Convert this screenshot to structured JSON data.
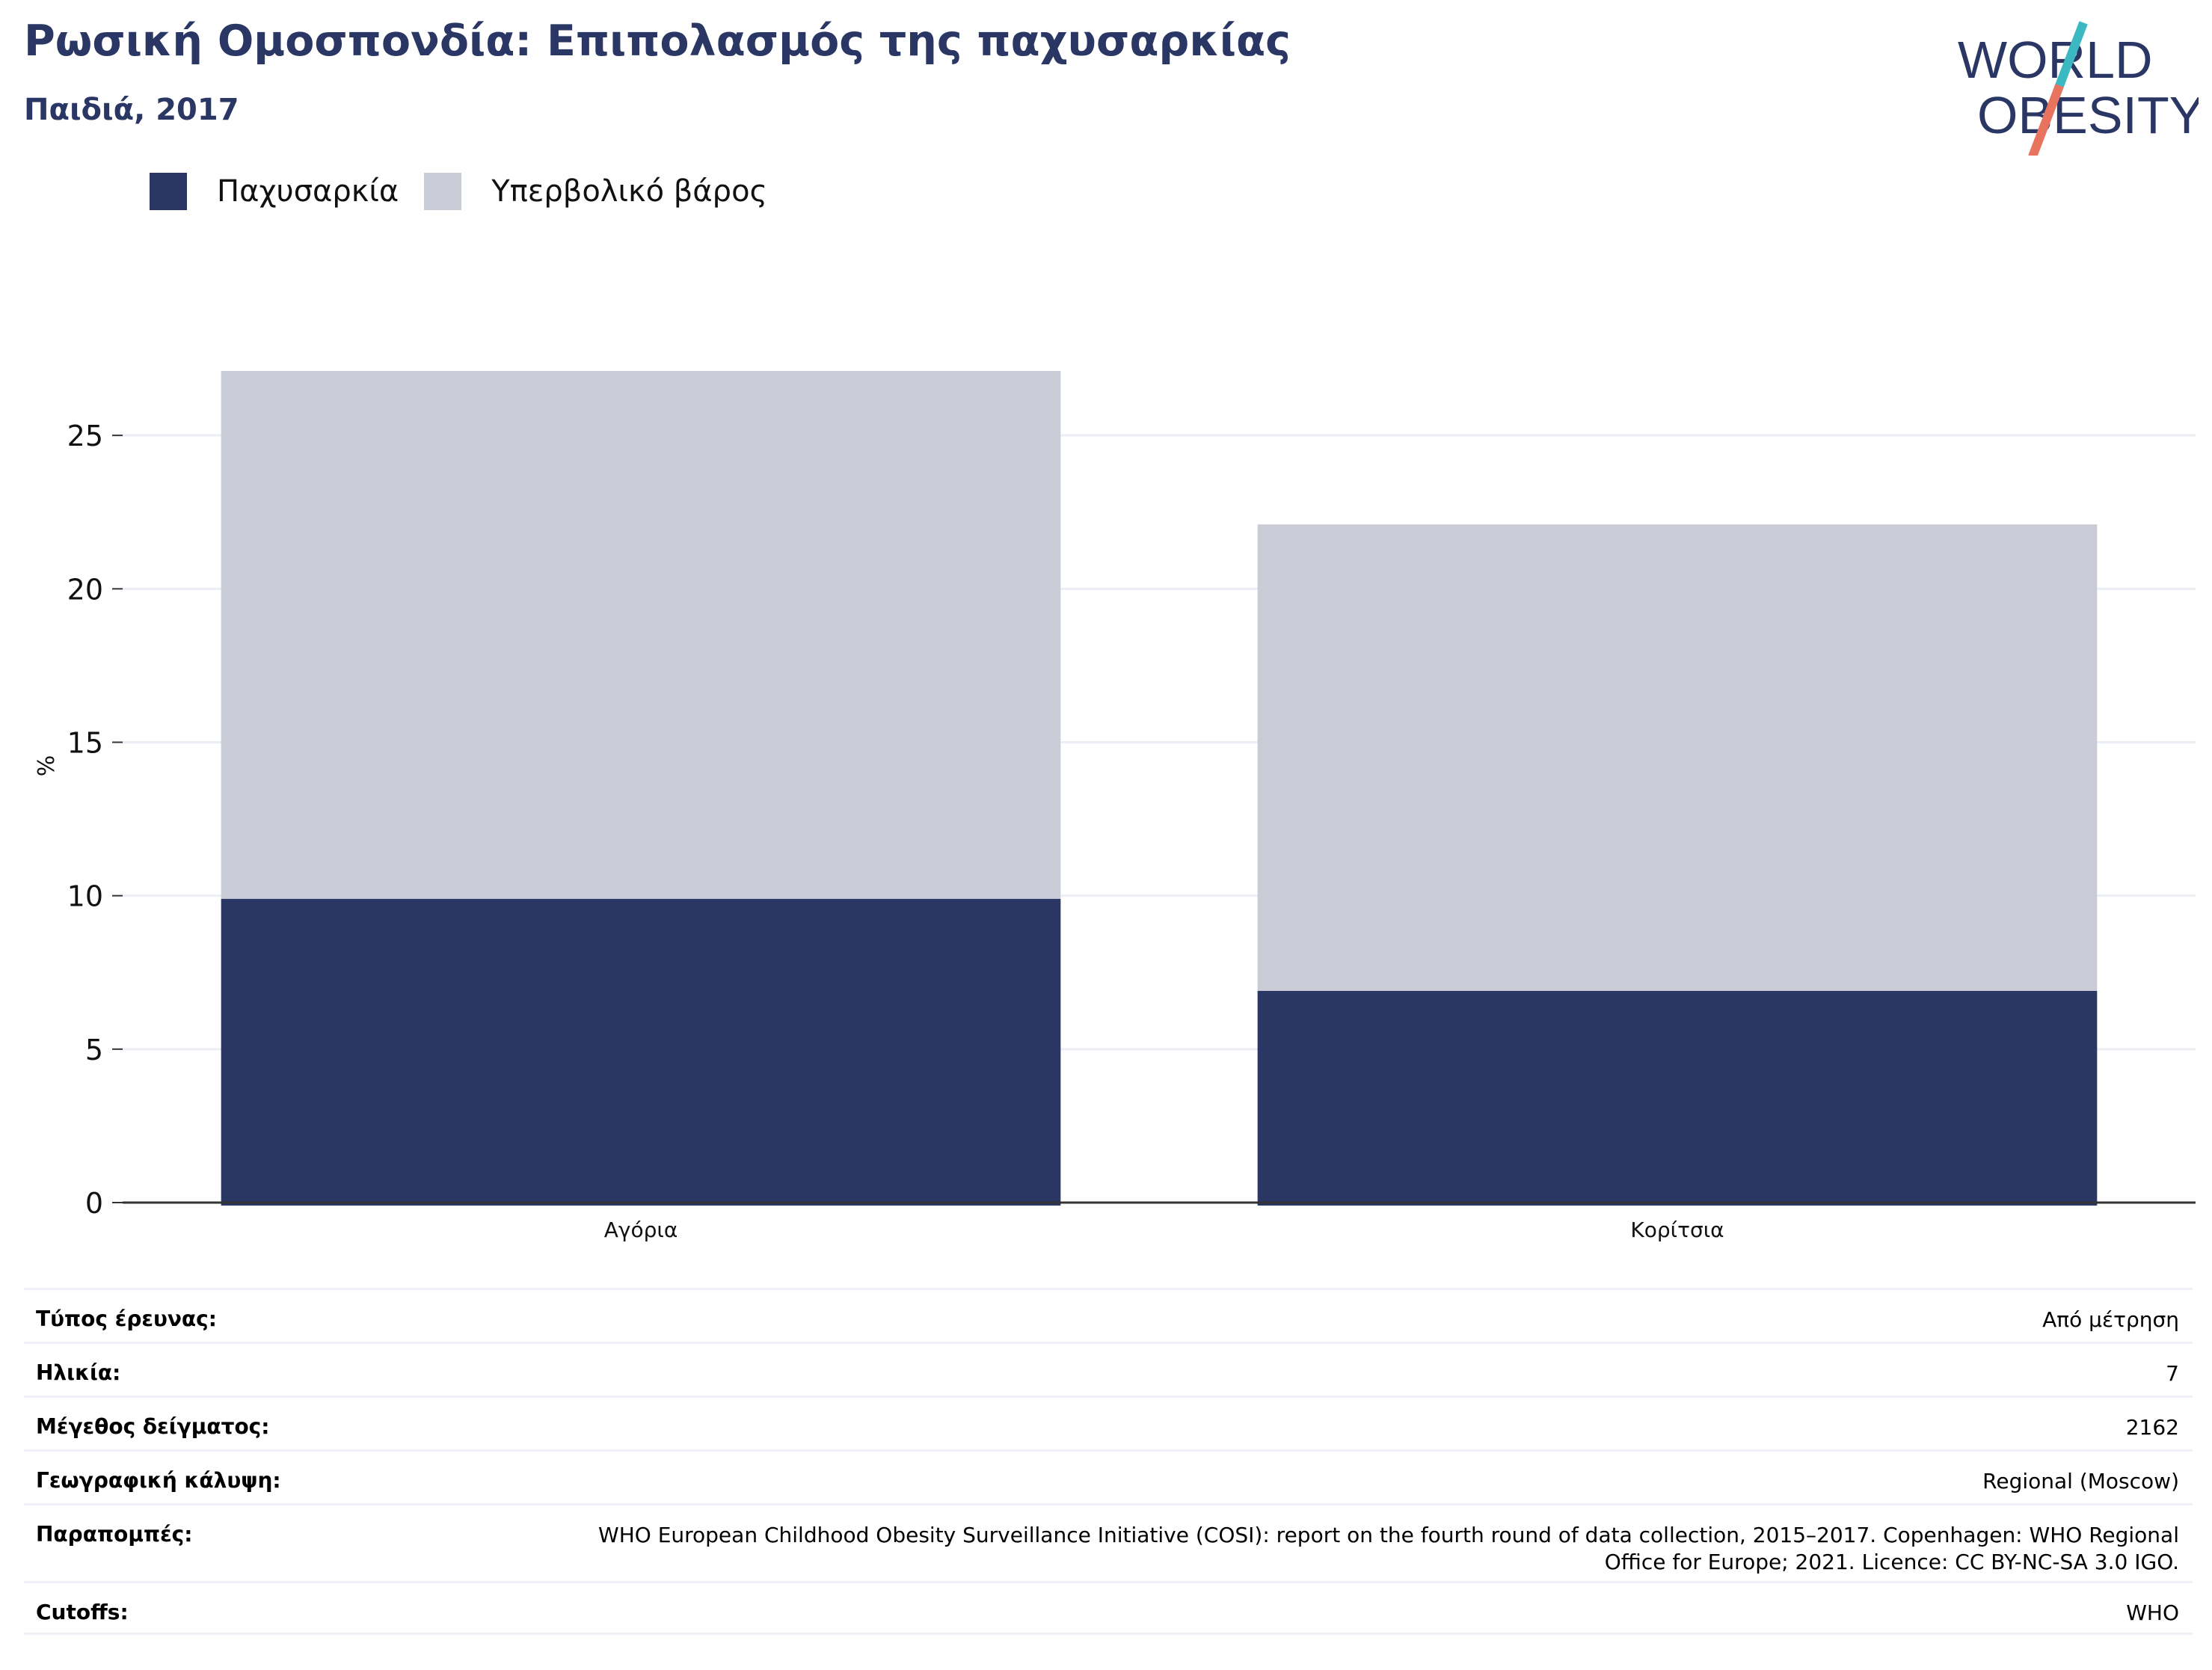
{
  "header": {
    "title": "Ρωσική Ομοσπονδία: Επιπολασμός της παχυσαρκίας",
    "subtitle": "Παιδιά, 2017"
  },
  "logo": {
    "line1": "WORLD",
    "line2": "OBESITY",
    "colors": {
      "text": "#2a3663",
      "slash_top": "#3bb8c1",
      "slash_bottom": "#e8735e"
    }
  },
  "legend": [
    {
      "label": "Παχυσαρκία",
      "color": "#2a3663"
    },
    {
      "label": "Υπερβολικό βάρος",
      "color": "#c9cbd7"
    }
  ],
  "chart_data": {
    "type": "bar",
    "stacked": true,
    "categories": [
      "Αγόρια",
      "Κορίτσια"
    ],
    "series": [
      {
        "name": "Παχυσαρκία",
        "color": "#2a3663",
        "values": [
          9.9,
          6.9
        ]
      },
      {
        "name": "Υπερβολικό βάρος",
        "color": "#c9cbd7",
        "values": [
          17.2,
          15.2
        ]
      }
    ],
    "ylabel": "%",
    "ylim": [
      0,
      27.1
    ],
    "yticks": [
      0,
      5,
      10,
      15,
      20,
      25
    ],
    "grid": true,
    "legend_position": "top-left"
  },
  "meta": [
    {
      "key": "Τύπος έρευνας:",
      "value": "Από μέτρηση"
    },
    {
      "key": "Ηλικία:",
      "value": "7"
    },
    {
      "key": "Μέγεθος δείγματος:",
      "value": "2162"
    },
    {
      "key": "Γεωγραφική κάλυψη:",
      "value": "Regional (Moscow)"
    },
    {
      "key": "Παραπομπές:",
      "value": "WHO European Childhood Obesity Surveillance Initiative (COSI): report on the fourth round of data collection, 2015–2017. Copenhagen: WHO Regional Office for Europe; 2021. Licence: CC BY-NC-SA 3.0 IGO."
    },
    {
      "key": "Cutoffs:",
      "value": "WHO"
    }
  ]
}
